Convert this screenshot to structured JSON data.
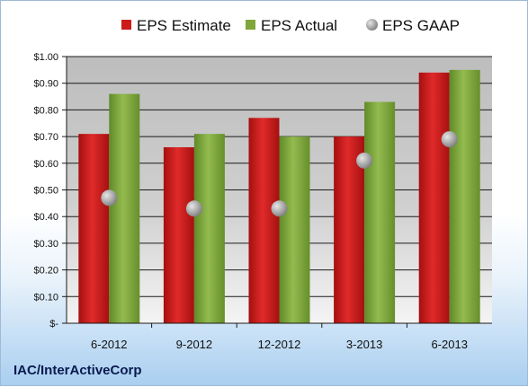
{
  "chart_data": {
    "type": "bar",
    "categories": [
      "6-2012",
      "9-2012",
      "12-2012",
      "3-2013",
      "6-2013"
    ],
    "series": [
      {
        "name": "EPS Estimate",
        "kind": "bar",
        "color": "#cc1a1a",
        "values": [
          0.71,
          0.66,
          0.77,
          0.7,
          0.94
        ]
      },
      {
        "name": "EPS Actual",
        "kind": "bar",
        "color": "#7fa63a",
        "values": [
          0.86,
          0.71,
          0.7,
          0.83,
          0.95
        ]
      },
      {
        "name": "EPS GAAP",
        "kind": "marker",
        "color": "#a9a9a9",
        "values": [
          0.47,
          0.43,
          0.43,
          0.61,
          0.69
        ]
      }
    ],
    "y_ticks": [
      {
        "value": 0,
        "label": "$-"
      },
      {
        "value": 0.1,
        "label": "$0.10"
      },
      {
        "value": 0.2,
        "label": "$0.20"
      },
      {
        "value": 0.3,
        "label": "$0.30"
      },
      {
        "value": 0.4,
        "label": "$0.40"
      },
      {
        "value": 0.5,
        "label": "$0.50"
      },
      {
        "value": 0.6,
        "label": "$0.60"
      },
      {
        "value": 0.7,
        "label": "$0.70"
      },
      {
        "value": 0.8,
        "label": "$0.80"
      },
      {
        "value": 0.9,
        "label": "$0.90"
      },
      {
        "value": 1.0,
        "label": "$1.00"
      }
    ],
    "ylim": [
      0,
      1.0
    ],
    "grid": true,
    "legend_position": "top",
    "company": "IAC/InterActiveCorp"
  }
}
